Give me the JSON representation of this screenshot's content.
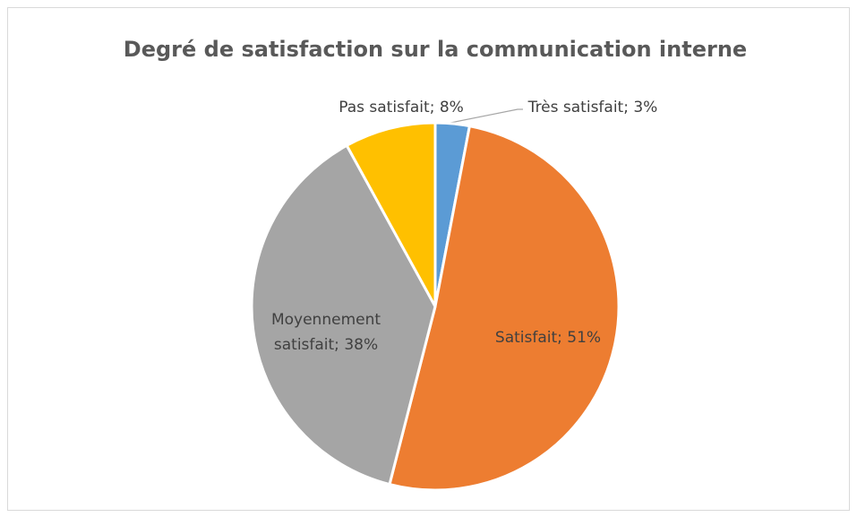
{
  "chart_data": {
    "type": "pie",
    "title": "Degré de satisfaction sur la communication interne",
    "categories": [
      "Très satisfait",
      "Satisfait",
      "Moyennement satisfait",
      "Pas satisfait"
    ],
    "values": [
      3,
      51,
      38,
      8
    ],
    "value_labels": [
      "Très satisfait; 3%",
      "Satisfait; 51%",
      "Moyennement satisfait; 38%",
      "Pas satisfait; 8%"
    ],
    "colors": [
      "#5b9bd5",
      "#ed7d31",
      "#a5a5a5",
      "#ffc000"
    ]
  }
}
